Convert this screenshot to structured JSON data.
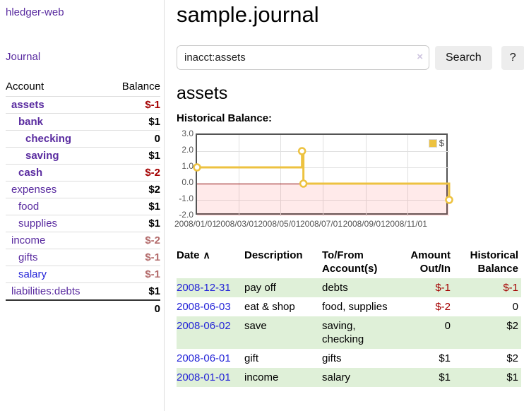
{
  "app": {
    "title": "hledger-web"
  },
  "sidebar": {
    "journal_link": "Journal",
    "accounts": {
      "header_account": "Account",
      "header_balance": "Balance",
      "rows": [
        {
          "label": "assets",
          "level": 0,
          "bold": true,
          "balance": "$-1"
        },
        {
          "label": "bank",
          "level": 1,
          "bold": true,
          "balance": "$1"
        },
        {
          "label": "checking",
          "level": 2,
          "bold": true,
          "balance": "0"
        },
        {
          "label": "saving",
          "level": 2,
          "bold": true,
          "balance": "$1"
        },
        {
          "label": "cash",
          "level": 1,
          "bold": true,
          "balance": "$-2"
        },
        {
          "label": "expenses",
          "level": 0,
          "bold": false,
          "balance": "$2"
        },
        {
          "label": "food",
          "level": 1,
          "bold": false,
          "balance": "$1"
        },
        {
          "label": "supplies",
          "level": 1,
          "bold": false,
          "balance": "$1"
        },
        {
          "label": "income",
          "level": 0,
          "bold": false,
          "balance": "$-2"
        },
        {
          "label": "gifts",
          "level": 1,
          "bold": false,
          "balance": "$-1"
        },
        {
          "label": "salary",
          "level": 1,
          "bold": false,
          "balance": "$-1",
          "link_blue": true
        },
        {
          "label": "liabilities:debts",
          "level": 0,
          "bold": false,
          "balance": "$1"
        }
      ],
      "total": "0"
    }
  },
  "main": {
    "title": "sample.journal",
    "search": {
      "value": "inacct:assets",
      "clear_icon": "×",
      "button_label": "Search",
      "help_label": "?"
    },
    "account_heading": "assets",
    "chart_label": "Historical Balance:"
  },
  "chart_data": {
    "type": "line",
    "style": "step",
    "title": "Historical Balance",
    "series": [
      {
        "name": "$",
        "points": [
          {
            "date": "2008-01-01",
            "value": 1
          },
          {
            "date": "2008-06-01",
            "value": 2
          },
          {
            "date": "2008-06-03",
            "value": 0
          },
          {
            "date": "2008-12-31",
            "value": -1
          }
        ],
        "day_offsets": [
          0,
          152,
          154,
          365
        ]
      }
    ],
    "ylim": [
      -2,
      3
    ],
    "yticks": [
      "3.0",
      "2.0",
      "1.0",
      "0.0",
      "-1.0",
      "-2.0"
    ],
    "ytick_values": [
      3,
      2,
      1,
      0,
      -1,
      -2
    ],
    "xticks": [
      "2008/01/01",
      "2008/03/01",
      "2008/05/01",
      "2008/07/01",
      "2008/09/01",
      "2008/11/01"
    ],
    "xtick_days": [
      0,
      60,
      121,
      182,
      244,
      305
    ],
    "x_range_days": 365,
    "grid": true,
    "legend_position": "top-right",
    "colors": {
      "series": "#edc240",
      "marker_fill": "#ffffff",
      "zero_line": "#8b0000",
      "negative_region": "rgba(255,80,80,0.12)",
      "gridline": "#e0e0e0",
      "plot_border": "#545454"
    }
  },
  "register": {
    "sort_icon": "∧",
    "headers": [
      "Date",
      "Description",
      "To/From Account(s)",
      "Amount Out/In",
      "Historical Balance"
    ],
    "rows": [
      {
        "date": "2008-12-31",
        "description": "pay off",
        "accounts": "debts",
        "amount": "$-1",
        "balance": "$-1"
      },
      {
        "date": "2008-06-03",
        "description": "eat & shop",
        "accounts": "food, supplies",
        "amount": "$-2",
        "balance": "0"
      },
      {
        "date": "2008-06-02",
        "description": "save",
        "accounts": "saving,\nchecking",
        "amount": "0",
        "balance": "$2"
      },
      {
        "date": "2008-06-01",
        "description": "gift",
        "accounts": "gifts",
        "amount": "$1",
        "balance": "$2"
      },
      {
        "date": "2008-01-01",
        "description": "income",
        "accounts": "salary",
        "amount": "$1",
        "balance": "$1"
      }
    ]
  },
  "colors": {
    "link_purple": "#5A2CA0",
    "link_blue": "#2525d8",
    "negative_strong": "#a40000",
    "negative_dim": "#b36b6b",
    "row_stripe_green": "#dff0d8",
    "button_bg": "#ededed"
  }
}
